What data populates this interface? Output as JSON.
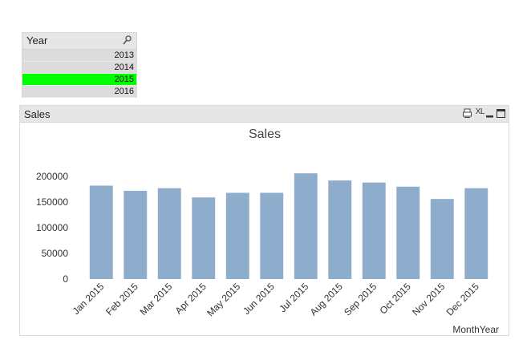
{
  "year_listbox": {
    "title": "Year",
    "items": [
      {
        "label": "2013",
        "selected": false
      },
      {
        "label": "2014",
        "selected": false
      },
      {
        "label": "2015",
        "selected": true
      },
      {
        "label": "2016",
        "selected": false
      }
    ],
    "selected_color": "#00ff00",
    "icon": "search-icon"
  },
  "sales_object": {
    "caption": "Sales",
    "icons": [
      "print-icon",
      "xl-icon",
      "minimize-icon",
      "maximize-icon"
    ],
    "xl_label": "XL"
  },
  "chart_data": {
    "type": "bar",
    "title": "Sales",
    "xlabel": "MonthYear",
    "ylabel": "",
    "categories": [
      "Jan 2015",
      "Feb 2015",
      "Mar 2015",
      "Apr 2015",
      "May 2015",
      "Jun 2015",
      "Jul 2015",
      "Aug 2015",
      "Sep 2015",
      "Oct 2015",
      "Nov 2015",
      "Dec 2015"
    ],
    "values": [
      182000,
      172000,
      177000,
      159000,
      168000,
      168000,
      206000,
      192000,
      188000,
      180000,
      156000,
      177000
    ],
    "yticks": [
      0,
      50000,
      100000,
      150000,
      200000
    ],
    "ytick_labels": [
      "0",
      "50000",
      "100000",
      "150000",
      "200000"
    ],
    "ylim": [
      0,
      200000
    ],
    "bar_color": "#8eaccc",
    "grid": false,
    "legend": "none"
  }
}
